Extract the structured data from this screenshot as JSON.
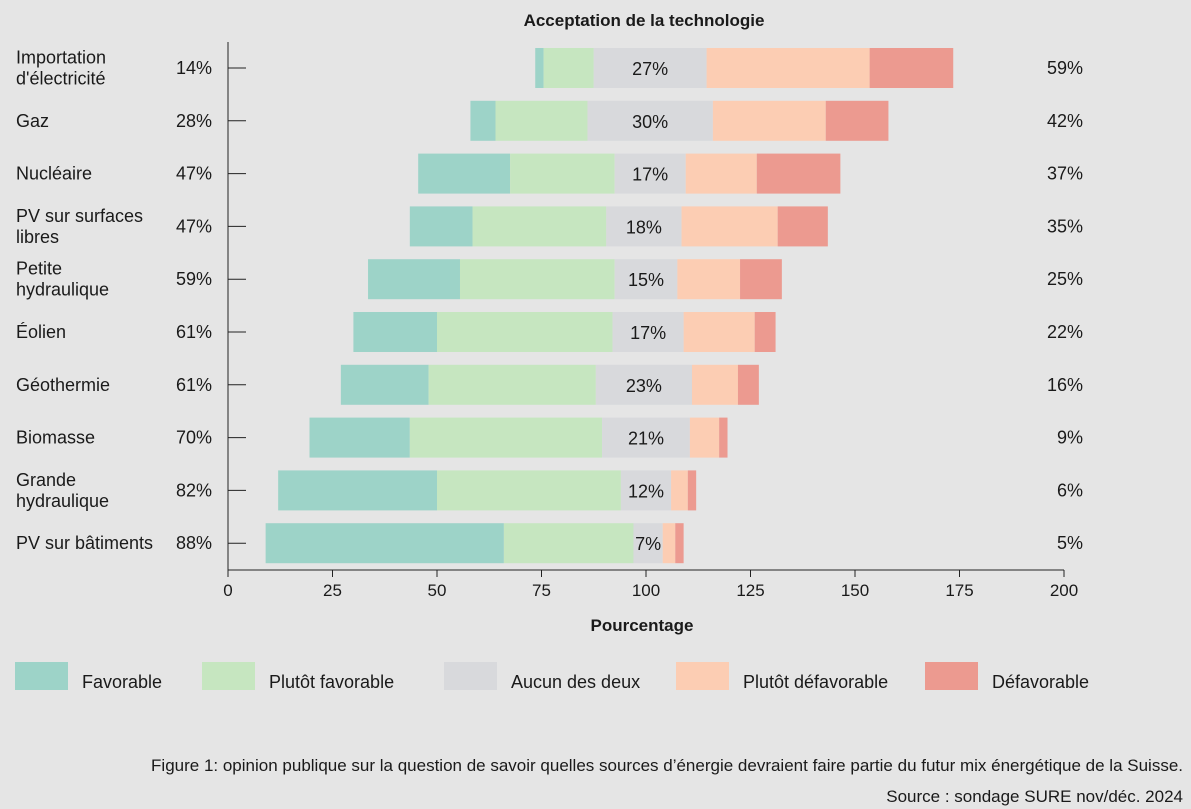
{
  "chart_data": {
    "type": "bar",
    "orientation": "horizontal-stacked-diverging",
    "title": "Acceptation de la technologie",
    "xlabel": "Pourcentage",
    "xlim": [
      0,
      200
    ],
    "xticks": [
      "0",
      "25",
      "50",
      "75",
      "100",
      "125",
      "150",
      "175",
      "200"
    ],
    "grid": false,
    "legend_position": "bottom",
    "categories": [
      "Importation d'électricité",
      "Gaz",
      "Nucléaire",
      "PV sur surfaces libres",
      "Petite hydraulique",
      "Éolien",
      "Géothermie",
      "Biomasse",
      "Grande hydraulique",
      "PV sur bâtiments"
    ],
    "category_lines": [
      [
        "Importation",
        "d'électricité"
      ],
      [
        "Gaz"
      ],
      [
        "Nucléaire"
      ],
      [
        "PV sur surfaces",
        "libres"
      ],
      [
        "Petite",
        "hydraulique"
      ],
      [
        "Éolien"
      ],
      [
        "Géothermie"
      ],
      [
        "Biomasse"
      ],
      [
        "Grande",
        "hydraulique"
      ],
      [
        "PV sur bâtiments"
      ]
    ],
    "favorable_labels": [
      "14%",
      "28%",
      "47%",
      "47%",
      "59%",
      "61%",
      "61%",
      "70%",
      "82%",
      "88%"
    ],
    "neutral_labels": [
      "27%",
      "30%",
      "17%",
      "18%",
      "15%",
      "17%",
      "23%",
      "21%",
      "12%",
      "7%"
    ],
    "unfavorable_labels": [
      "59%",
      "42%",
      "37%",
      "35%",
      "25%",
      "22%",
      "16%",
      "9%",
      "6%",
      "5%"
    ],
    "series": [
      {
        "name": "Favorable",
        "color": "#9dd3c8",
        "values": [
          2,
          6,
          22,
          15,
          22,
          20,
          21,
          24,
          38,
          57
        ]
      },
      {
        "name": "Plutôt favorable",
        "color": "#c6e6c0",
        "values": [
          12,
          22,
          25,
          32,
          37,
          42,
          40,
          46,
          44,
          31
        ]
      },
      {
        "name": "Aucun des deux",
        "color": "#d8d9dc",
        "values": [
          27,
          30,
          17,
          18,
          15,
          17,
          23,
          21,
          12,
          7
        ]
      },
      {
        "name": "Plutôt défavorable",
        "color": "#fccdb3",
        "values": [
          39,
          27,
          17,
          23,
          15,
          17,
          11,
          7,
          4,
          3
        ]
      },
      {
        "name": "Défavorable",
        "color": "#ec9a90",
        "values": [
          20,
          15,
          20,
          12,
          10,
          5,
          5,
          2,
          2,
          2
        ]
      }
    ],
    "start_values": [
      73.5,
      58,
      45.5,
      43.5,
      33.5,
      30,
      27,
      19.5,
      12,
      9
    ]
  },
  "caption": "Figure 1: opinion publique sur la question de savoir quelles sources d’énergie devraient faire partie du futur mix énergétique de la Suisse.",
  "source": "Source : sondage SURE nov/déc. 2024"
}
